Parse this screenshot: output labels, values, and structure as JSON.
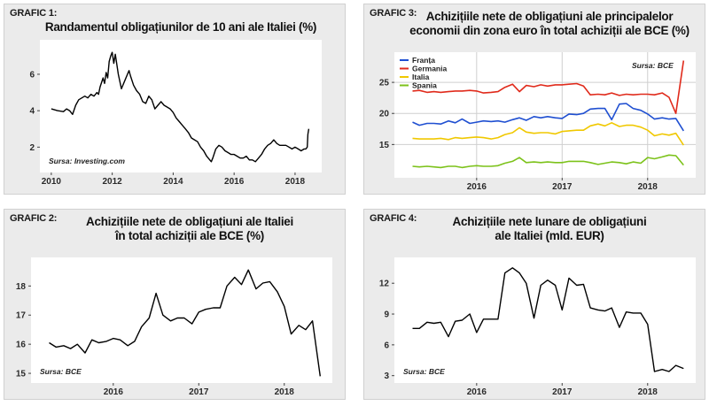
{
  "panels": {
    "p1": {
      "tag": "GRAFIC 1:",
      "title": "Randamentul obligațiunilor de 10 ani ale Italiei (%)",
      "source": "Sursa: Investing.com"
    },
    "p2": {
      "tag": "GRAFIC 2:",
      "title_lines": [
        "Achizițiile nete de obligațiuni ale Italiei",
        "în total achiziții ale BCE (%)"
      ],
      "source": "Sursa: BCE"
    },
    "p3": {
      "tag": "GRAFIC 3:",
      "title_lines": [
        "Achizițiile nete de obligațiuni ale principalelor",
        "economii din zona euro în total achiziții ale BCE (%)"
      ],
      "source": "Sursa: BCE"
    },
    "p4": {
      "tag": "GRAFIC 4:",
      "title_lines": [
        "Achizițiile nete lunare de obligațiuni",
        "ale Italiei (mld. EUR)"
      ],
      "source": "Sursa: BCE"
    }
  },
  "chart_data": [
    {
      "id": "grafic1",
      "type": "line",
      "title": "Randamentul obligațiunilor de 10 ani ale Italiei (%)",
      "xlabel": "",
      "ylabel": "",
      "xlim": [
        2009.8,
        2018.7
      ],
      "ylim": [
        0.9,
        7.6
      ],
      "x_ticks": [
        2010,
        2012,
        2014,
        2016,
        2018
      ],
      "y_ticks": [
        2,
        4,
        6
      ],
      "grid": false,
      "series": [
        {
          "color": "#000000",
          "x": [
            2010.0,
            2010.2,
            2010.4,
            2010.5,
            2010.6,
            2010.7,
            2010.8,
            2010.9,
            2011.0,
            2011.1,
            2011.2,
            2011.3,
            2011.4,
            2011.5,
            2011.55,
            2011.6,
            2011.7,
            2011.75,
            2011.8,
            2011.85,
            2011.9,
            2011.95,
            2012.0,
            2012.05,
            2012.1,
            2012.2,
            2012.3,
            2012.4,
            2012.5,
            2012.55,
            2012.6,
            2012.7,
            2012.8,
            2012.9,
            2013.0,
            2013.1,
            2013.2,
            2013.3,
            2013.4,
            2013.5,
            2013.6,
            2013.7,
            2013.8,
            2013.9,
            2014.0,
            2014.1,
            2014.2,
            2014.3,
            2014.4,
            2014.5,
            2014.6,
            2014.7,
            2014.8,
            2014.9,
            2015.0,
            2015.1,
            2015.2,
            2015.25,
            2015.3,
            2015.4,
            2015.5,
            2015.6,
            2015.7,
            2015.8,
            2015.9,
            2016.0,
            2016.1,
            2016.2,
            2016.3,
            2016.4,
            2016.5,
            2016.6,
            2016.7,
            2016.8,
            2016.9,
            2017.0,
            2017.1,
            2017.2,
            2017.3,
            2017.4,
            2017.5,
            2017.6,
            2017.7,
            2017.8,
            2017.9,
            2018.0,
            2018.1,
            2018.2,
            2018.3,
            2018.35,
            2018.4,
            2018.42,
            2018.45
          ],
          "y": [
            4.1,
            4.0,
            3.95,
            4.1,
            4.0,
            3.8,
            4.3,
            4.6,
            4.7,
            4.8,
            4.7,
            4.9,
            4.8,
            5.0,
            4.9,
            5.3,
            5.8,
            5.5,
            6.1,
            5.8,
            6.7,
            7.0,
            7.2,
            6.6,
            7.1,
            6.0,
            5.2,
            5.6,
            6.0,
            6.2,
            5.9,
            5.4,
            5.1,
            4.9,
            4.5,
            4.4,
            4.8,
            4.6,
            4.1,
            4.3,
            4.5,
            4.3,
            4.2,
            4.1,
            3.9,
            3.6,
            3.4,
            3.2,
            3.0,
            2.8,
            2.5,
            2.4,
            2.3,
            2.0,
            1.8,
            1.5,
            1.3,
            1.2,
            1.4,
            1.9,
            2.1,
            2.0,
            1.8,
            1.7,
            1.6,
            1.6,
            1.5,
            1.4,
            1.4,
            1.5,
            1.3,
            1.3,
            1.2,
            1.4,
            1.6,
            1.9,
            2.1,
            2.2,
            2.4,
            2.2,
            2.1,
            2.1,
            2.1,
            2.0,
            1.9,
            2.0,
            1.9,
            1.8,
            1.9,
            1.9,
            2.0,
            2.7,
            3.0
          ]
        }
      ]
    },
    {
      "id": "grafic2",
      "type": "line",
      "title": "Achizițiile nete de obligațiuni ale Italiei în total achiziții ale BCE (%)",
      "xlabel": "",
      "ylabel": "",
      "xlim": [
        2015.1,
        2018.5
      ],
      "ylim": [
        14.85,
        18.8
      ],
      "x_ticks": [
        2016,
        2017,
        2018
      ],
      "y_ticks": [
        15,
        16,
        17,
        18
      ],
      "grid": false,
      "series": [
        {
          "color": "#000000",
          "x": [
            2015.25,
            2015.33,
            2015.42,
            2015.5,
            2015.58,
            2015.67,
            2015.75,
            2015.83,
            2015.92,
            2016.0,
            2016.08,
            2016.17,
            2016.25,
            2016.33,
            2016.42,
            2016.5,
            2016.58,
            2016.67,
            2016.75,
            2016.83,
            2016.92,
            2017.0,
            2017.08,
            2017.17,
            2017.25,
            2017.33,
            2017.42,
            2017.5,
            2017.58,
            2017.67,
            2017.75,
            2017.83,
            2017.92,
            2018.0,
            2018.08,
            2018.17,
            2018.25,
            2018.33,
            2018.42
          ],
          "y": [
            16.05,
            15.9,
            15.95,
            15.85,
            16.0,
            15.7,
            16.15,
            16.05,
            16.1,
            16.2,
            16.15,
            15.95,
            16.1,
            16.6,
            16.9,
            17.75,
            17.0,
            16.8,
            16.9,
            16.9,
            16.7,
            17.1,
            17.2,
            17.25,
            17.25,
            18.0,
            18.3,
            18.05,
            18.55,
            17.9,
            18.1,
            18.15,
            17.8,
            17.3,
            16.35,
            16.65,
            16.5,
            16.8,
            14.9
          ]
        }
      ]
    },
    {
      "id": "grafic3",
      "type": "line",
      "title": "Achizițiile nete de obligațiuni ale principalelor economii din zona euro în total achiziții ale BCE (%)",
      "xlabel": "",
      "ylabel": "",
      "xlim": [
        2015.1,
        2018.5
      ],
      "ylim": [
        10.5,
        29
      ],
      "x_ticks": [
        2016,
        2017,
        2018
      ],
      "y_ticks": [
        15,
        20,
        25
      ],
      "grid": true,
      "legend": "top-left",
      "series": [
        {
          "name": "Franța",
          "color": "#1f4fd1",
          "x": [
            2015.25,
            2015.33,
            2015.42,
            2015.5,
            2015.58,
            2015.67,
            2015.75,
            2015.83,
            2015.92,
            2016.0,
            2016.08,
            2016.17,
            2016.25,
            2016.33,
            2016.42,
            2016.5,
            2016.58,
            2016.67,
            2016.75,
            2016.83,
            2016.92,
            2017.0,
            2017.08,
            2017.17,
            2017.25,
            2017.33,
            2017.42,
            2017.5,
            2017.58,
            2017.67,
            2017.75,
            2017.83,
            2017.92,
            2018.0,
            2018.08,
            2018.17,
            2018.25,
            2018.33,
            2018.42
          ],
          "y": [
            18.6,
            18.1,
            18.4,
            18.4,
            18.3,
            18.8,
            18.5,
            19.1,
            18.4,
            18.6,
            18.8,
            18.7,
            18.8,
            18.6,
            19.0,
            19.3,
            18.9,
            19.5,
            19.3,
            19.5,
            19.3,
            19.2,
            19.9,
            19.8,
            20.0,
            20.7,
            20.8,
            20.8,
            19.0,
            21.5,
            21.6,
            20.8,
            20.5,
            19.9,
            19.1,
            19.3,
            19.1,
            19.2,
            17.2
          ]
        },
        {
          "name": "Germania",
          "color": "#e02a1b",
          "x": [
            2015.25,
            2015.33,
            2015.42,
            2015.5,
            2015.58,
            2015.67,
            2015.75,
            2015.83,
            2015.92,
            2016.0,
            2016.08,
            2016.17,
            2016.25,
            2016.33,
            2016.42,
            2016.5,
            2016.58,
            2016.67,
            2016.75,
            2016.83,
            2016.92,
            2017.0,
            2017.08,
            2017.17,
            2017.25,
            2017.33,
            2017.42,
            2017.5,
            2017.58,
            2017.67,
            2017.75,
            2017.83,
            2017.92,
            2018.0,
            2018.08,
            2018.17,
            2018.25,
            2018.33,
            2018.42
          ],
          "y": [
            23.6,
            23.7,
            23.4,
            23.5,
            23.4,
            23.5,
            23.6,
            23.6,
            23.7,
            23.6,
            23.3,
            23.4,
            23.5,
            24.2,
            24.7,
            23.5,
            24.5,
            24.3,
            24.6,
            24.4,
            24.6,
            24.6,
            24.7,
            24.8,
            24.4,
            23.0,
            23.1,
            23.0,
            23.3,
            22.9,
            23.1,
            23.0,
            23.1,
            23.1,
            23.0,
            23.3,
            22.6,
            20.0,
            28.5
          ]
        },
        {
          "name": "Italia",
          "color": "#f0c800",
          "x": [
            2015.25,
            2015.33,
            2015.42,
            2015.5,
            2015.58,
            2015.67,
            2015.75,
            2015.83,
            2015.92,
            2016.0,
            2016.08,
            2016.17,
            2016.25,
            2016.33,
            2016.42,
            2016.5,
            2016.58,
            2016.67,
            2016.75,
            2016.83,
            2016.92,
            2017.0,
            2017.08,
            2017.17,
            2017.25,
            2017.33,
            2017.42,
            2017.5,
            2017.58,
            2017.67,
            2017.75,
            2017.83,
            2017.92,
            2018.0,
            2018.08,
            2018.17,
            2018.25,
            2018.33,
            2018.42
          ],
          "y": [
            16.0,
            15.9,
            15.9,
            15.9,
            16.0,
            15.8,
            16.1,
            16.0,
            16.1,
            16.2,
            16.1,
            15.9,
            16.1,
            16.6,
            16.9,
            17.7,
            17.0,
            16.8,
            16.9,
            16.9,
            16.7,
            17.1,
            17.2,
            17.3,
            17.3,
            18.0,
            18.3,
            18.0,
            18.5,
            17.9,
            18.1,
            18.1,
            17.8,
            17.3,
            16.4,
            16.7,
            16.5,
            16.8,
            14.9
          ]
        },
        {
          "name": "Spania",
          "color": "#7cc21a",
          "x": [
            2015.25,
            2015.33,
            2015.42,
            2015.5,
            2015.58,
            2015.67,
            2015.75,
            2015.83,
            2015.92,
            2016.0,
            2016.08,
            2016.17,
            2016.25,
            2016.33,
            2016.42,
            2016.5,
            2016.58,
            2016.67,
            2016.75,
            2016.83,
            2016.92,
            2017.0,
            2017.08,
            2017.17,
            2017.25,
            2017.33,
            2017.42,
            2017.5,
            2017.58,
            2017.67,
            2017.75,
            2017.83,
            2017.92,
            2018.0,
            2018.08,
            2018.17,
            2018.25,
            2018.33,
            2018.42
          ],
          "y": [
            11.5,
            11.4,
            11.5,
            11.4,
            11.3,
            11.5,
            11.5,
            11.3,
            11.5,
            11.6,
            11.5,
            11.5,
            11.6,
            12.0,
            12.3,
            12.9,
            12.1,
            12.2,
            12.1,
            12.2,
            12.1,
            12.1,
            12.3,
            12.3,
            12.3,
            12.1,
            11.8,
            12.0,
            12.2,
            12.1,
            11.9,
            12.2,
            12.0,
            12.9,
            12.7,
            13.0,
            13.3,
            13.2,
            11.7
          ]
        }
      ]
    },
    {
      "id": "grafic4",
      "type": "line",
      "title": "Achizițiile nete lunare de obligațiuni ale Italiei (mld. EUR)",
      "xlabel": "",
      "ylabel": "",
      "xlim": [
        2015.1,
        2018.5
      ],
      "ylim": [
        2.8,
        14
      ],
      "x_ticks": [
        2016,
        2017,
        2018
      ],
      "y_ticks": [
        3,
        6,
        9,
        12
      ],
      "grid": false,
      "series": [
        {
          "color": "#000000",
          "x": [
            2015.25,
            2015.33,
            2015.42,
            2015.5,
            2015.58,
            2015.67,
            2015.75,
            2015.83,
            2015.92,
            2016.0,
            2016.08,
            2016.17,
            2016.25,
            2016.33,
            2016.42,
            2016.5,
            2016.58,
            2016.67,
            2016.75,
            2016.83,
            2016.92,
            2017.0,
            2017.08,
            2017.17,
            2017.25,
            2017.33,
            2017.42,
            2017.5,
            2017.58,
            2017.67,
            2017.75,
            2017.83,
            2017.92,
            2018.0,
            2018.08,
            2018.17,
            2018.25,
            2018.33,
            2018.42
          ],
          "y": [
            7.6,
            7.6,
            8.2,
            8.1,
            8.2,
            6.8,
            8.3,
            8.4,
            9.0,
            7.2,
            8.5,
            8.5,
            8.5,
            13.0,
            13.5,
            13.0,
            12.0,
            8.6,
            11.8,
            12.3,
            11.8,
            9.4,
            12.5,
            11.8,
            11.9,
            9.6,
            9.4,
            9.3,
            9.6,
            7.7,
            9.2,
            9.1,
            9.1,
            8.0,
            3.4,
            3.6,
            3.4,
            4.0,
            3.7
          ]
        }
      ]
    }
  ]
}
